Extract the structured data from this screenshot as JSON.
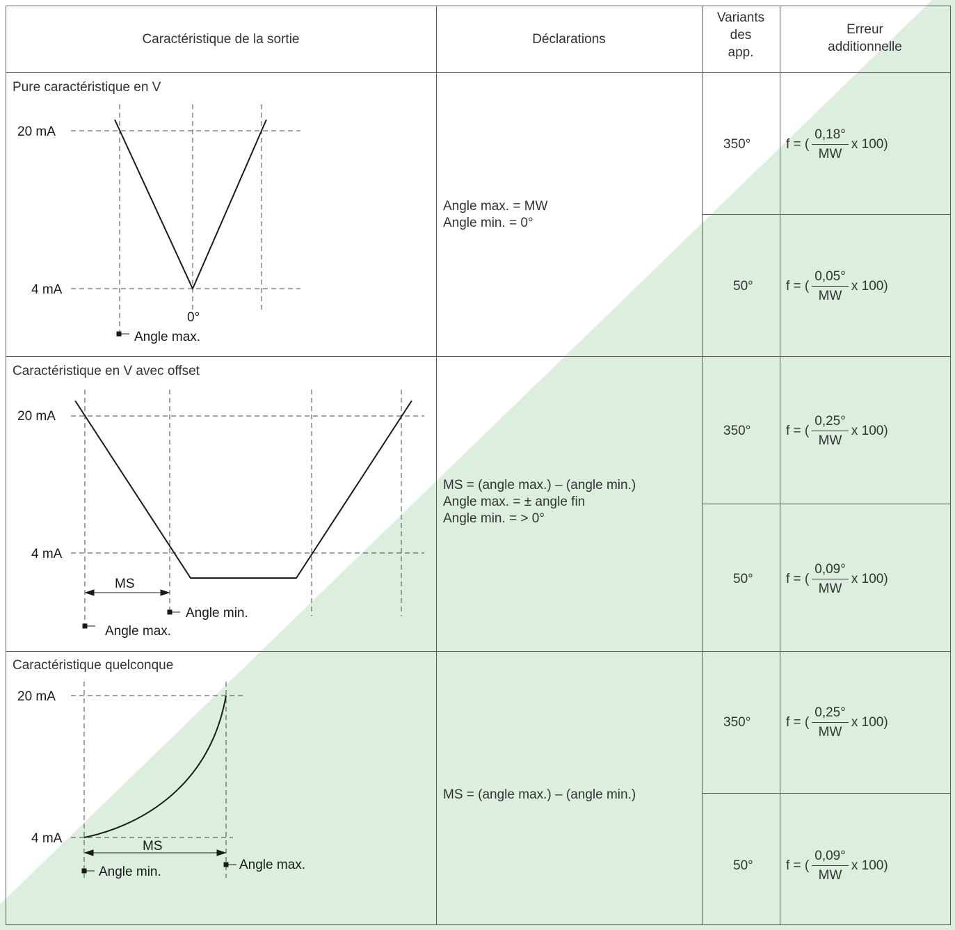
{
  "header": {
    "col1": "Caractéristique de la sortie",
    "col2": "Déclarations",
    "col3": [
      "Variants",
      "des",
      "app."
    ],
    "col4": [
      "Erreur",
      "additionnelle"
    ]
  },
  "formula_prefix": "f = (",
  "formula_suffix": "x 100)",
  "formula_denominator": "MW",
  "rows": [
    {
      "title": "Pure caractéristique en V",
      "declarations": [
        "Angle max. = MW",
        "Angle min. = 0°"
      ],
      "variants": [
        {
          "variant": "350°",
          "numerator": "0,18°"
        },
        {
          "variant": "50°",
          "numerator": "0,05°"
        }
      ]
    },
    {
      "title": "Caractéristique en V avec offset",
      "declarations": [
        "MS = (angle max.) – (angle min.)",
        "Angle max. = ± angle fin",
        "Angle min. = > 0°"
      ],
      "variants": [
        {
          "variant": "350°",
          "numerator": "0,25°"
        },
        {
          "variant": "50°",
          "numerator": "0,09°"
        }
      ]
    },
    {
      "title": "Caractéristique quelconque",
      "declarations": [
        "MS = (angle max.) – (angle min.)"
      ],
      "variants": [
        {
          "variant": "350°",
          "numerator": "0,25°"
        },
        {
          "variant": "50°",
          "numerator": "0,09°"
        }
      ]
    }
  ],
  "diagram_labels": {
    "ma20": "20 mA",
    "ma4": "4 mA",
    "zero": "0°",
    "angle_max": "Angle max.",
    "angle_min": "Angle min.",
    "ms": "MS"
  },
  "colors": {
    "diagonal_fill": "#dcefdf",
    "grid_line": "#5a5a5a",
    "curve": "#1a1a1a"
  }
}
